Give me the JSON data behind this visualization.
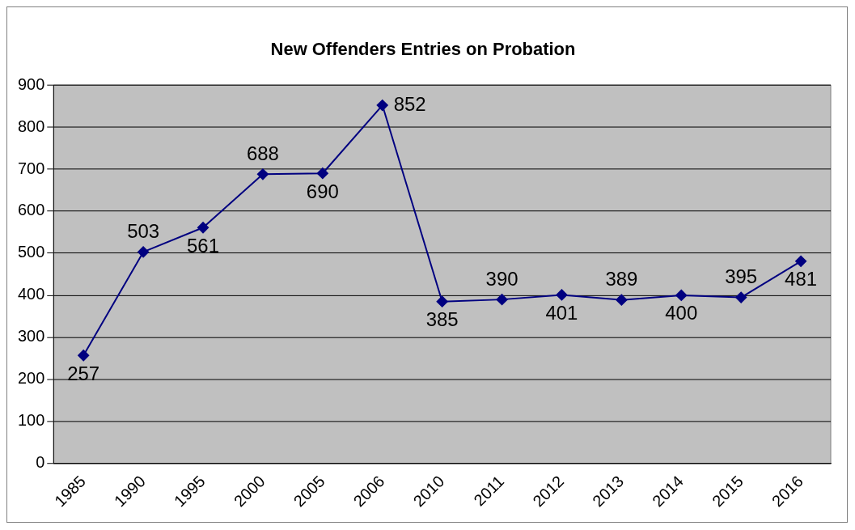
{
  "chart_data": {
    "type": "line",
    "title": "New Offenders Entries on Probation",
    "categories": [
      "1985",
      "1990",
      "1995",
      "2000",
      "2005",
      "2006",
      "2010",
      "2011",
      "2012",
      "2013",
      "2014",
      "2015",
      "2016"
    ],
    "series": [
      {
        "color": "#000080",
        "values": [
          257,
          503,
          561,
          688,
          690,
          852,
          385,
          390,
          401,
          389,
          400,
          395,
          481
        ]
      }
    ],
    "ylim": [
      0,
      900
    ],
    "yticks": [
      0,
      100,
      200,
      300,
      400,
      500,
      600,
      700,
      800,
      900
    ],
    "grid": "y",
    "legend": false,
    "marker": "diamond",
    "line_style": "solid",
    "data_labels": true
  }
}
